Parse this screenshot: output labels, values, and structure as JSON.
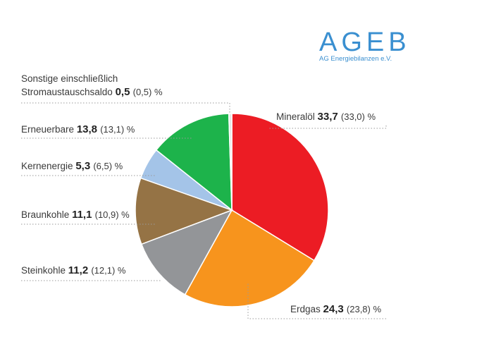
{
  "logo": {
    "name": "AGEB",
    "subtitle": "AG Energiebilanzen e.V."
  },
  "chart_data": {
    "type": "pie",
    "unit": "%",
    "colors_note": "slice colors",
    "slices": [
      {
        "label": "Mineralöl",
        "value": 33.7,
        "value_text": "33,7",
        "prev_text": "(33,0) %",
        "color": "#ec1c24"
      },
      {
        "label": "Erdgas",
        "value": 24.3,
        "value_text": "24,3",
        "prev_text": "(23,8) %",
        "color": "#f7941d"
      },
      {
        "label": "Steinkohle",
        "value": 11.2,
        "value_text": "11,2",
        "prev_text": "(12,1) %",
        "color": "#939598"
      },
      {
        "label": "Braunkohle",
        "value": 11.1,
        "value_text": "11,1",
        "prev_text": "(10,9) %",
        "color": "#957345"
      },
      {
        "label": "Kernenergie",
        "value": 5.3,
        "value_text": "5,3",
        "prev_text": "(6,5) %",
        "color": "#a4c4e8"
      },
      {
        "label": "Erneuerbare",
        "value": 13.8,
        "value_text": "13,8",
        "prev_text": "(13,1) %",
        "color": "#1db34b"
      },
      {
        "label": "Sonstige einschließlich",
        "label_line2": "Stromaustauschsaldo",
        "value": 0.5,
        "value_text": "0,5",
        "prev_text": "(0,5) %",
        "color": "#e6e6e6"
      }
    ]
  }
}
